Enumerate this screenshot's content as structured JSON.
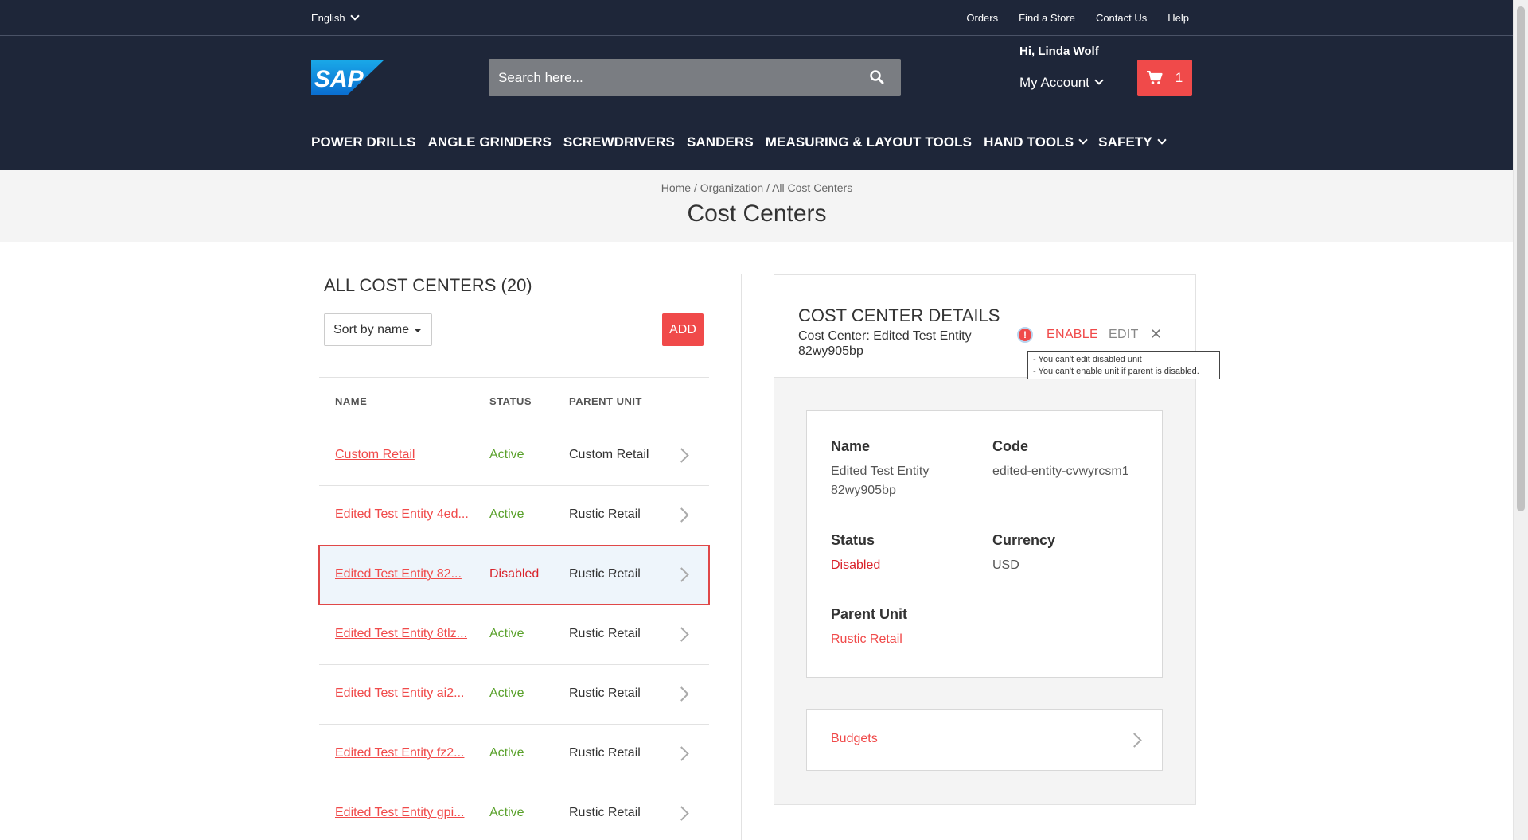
{
  "topbar": {
    "language": "English",
    "links": [
      "Orders",
      "Find a Store",
      "Contact Us",
      "Help"
    ]
  },
  "header": {
    "logo_text": "SAP",
    "search_placeholder": "Search here...",
    "greeting": "Hi, Linda Wolf",
    "account_label": "My Account",
    "cart_count": "1"
  },
  "nav": {
    "items": [
      "POWER DRILLS",
      "ANGLE GRINDERS",
      "SCREWDRIVERS",
      "SANDERS",
      "MEASURING & LAYOUT TOOLS",
      "HAND TOOLS",
      "SAFETY"
    ]
  },
  "breadcrumb": {
    "items": [
      "Home",
      "Organization",
      "All Cost Centers"
    ],
    "separator": "/"
  },
  "page_title": "Cost Centers",
  "list": {
    "title": "ALL COST CENTERS (20)",
    "sort_label": "Sort by name",
    "add_label": "ADD",
    "columns": [
      "NAME",
      "STATUS",
      "PARENT UNIT"
    ],
    "rows": [
      {
        "name": "Custom Retail",
        "status": "Active",
        "parent": "Custom Retail"
      },
      {
        "name": "Edited Test Entity 4ed...",
        "status": "Active",
        "parent": "Rustic Retail"
      },
      {
        "name": "Edited Test Entity 82...",
        "status": "Disabled",
        "parent": "Rustic Retail"
      },
      {
        "name": "Edited Test Entity 8tlz...",
        "status": "Active",
        "parent": "Rustic Retail"
      },
      {
        "name": "Edited Test Entity ai2...",
        "status": "Active",
        "parent": "Rustic Retail"
      },
      {
        "name": "Edited Test Entity fz2...",
        "status": "Active",
        "parent": "Rustic Retail"
      },
      {
        "name": "Edited Test Entity gpi...",
        "status": "Active",
        "parent": "Rustic Retail"
      }
    ]
  },
  "details": {
    "title": "COST CENTER DETAILS",
    "subtitle": "Cost Center: Edited Test Entity 82wy905bp",
    "enable_label": "ENABLE",
    "edit_label": "EDIT",
    "close_label": "✕",
    "info_icon_text": "!",
    "tooltip_lines": [
      "- You can't edit disabled unit",
      "- You can't enable unit if parent is disabled."
    ],
    "fields": {
      "name_label": "Name",
      "name_value": "Edited Test Entity 82wy905bp",
      "code_label": "Code",
      "code_value": "edited-entity-cvwyrcsm1",
      "status_label": "Status",
      "status_value": "Disabled",
      "currency_label": "Currency",
      "currency_value": "USD",
      "parent_label": "Parent Unit",
      "parent_value": "Rustic Retail"
    },
    "budgets_label": "Budgets"
  },
  "colors": {
    "header_bg": "#1e2639",
    "accent_red": "#f04a4a",
    "active_green": "#5aa12b",
    "disabled_red": "#d9222a"
  }
}
